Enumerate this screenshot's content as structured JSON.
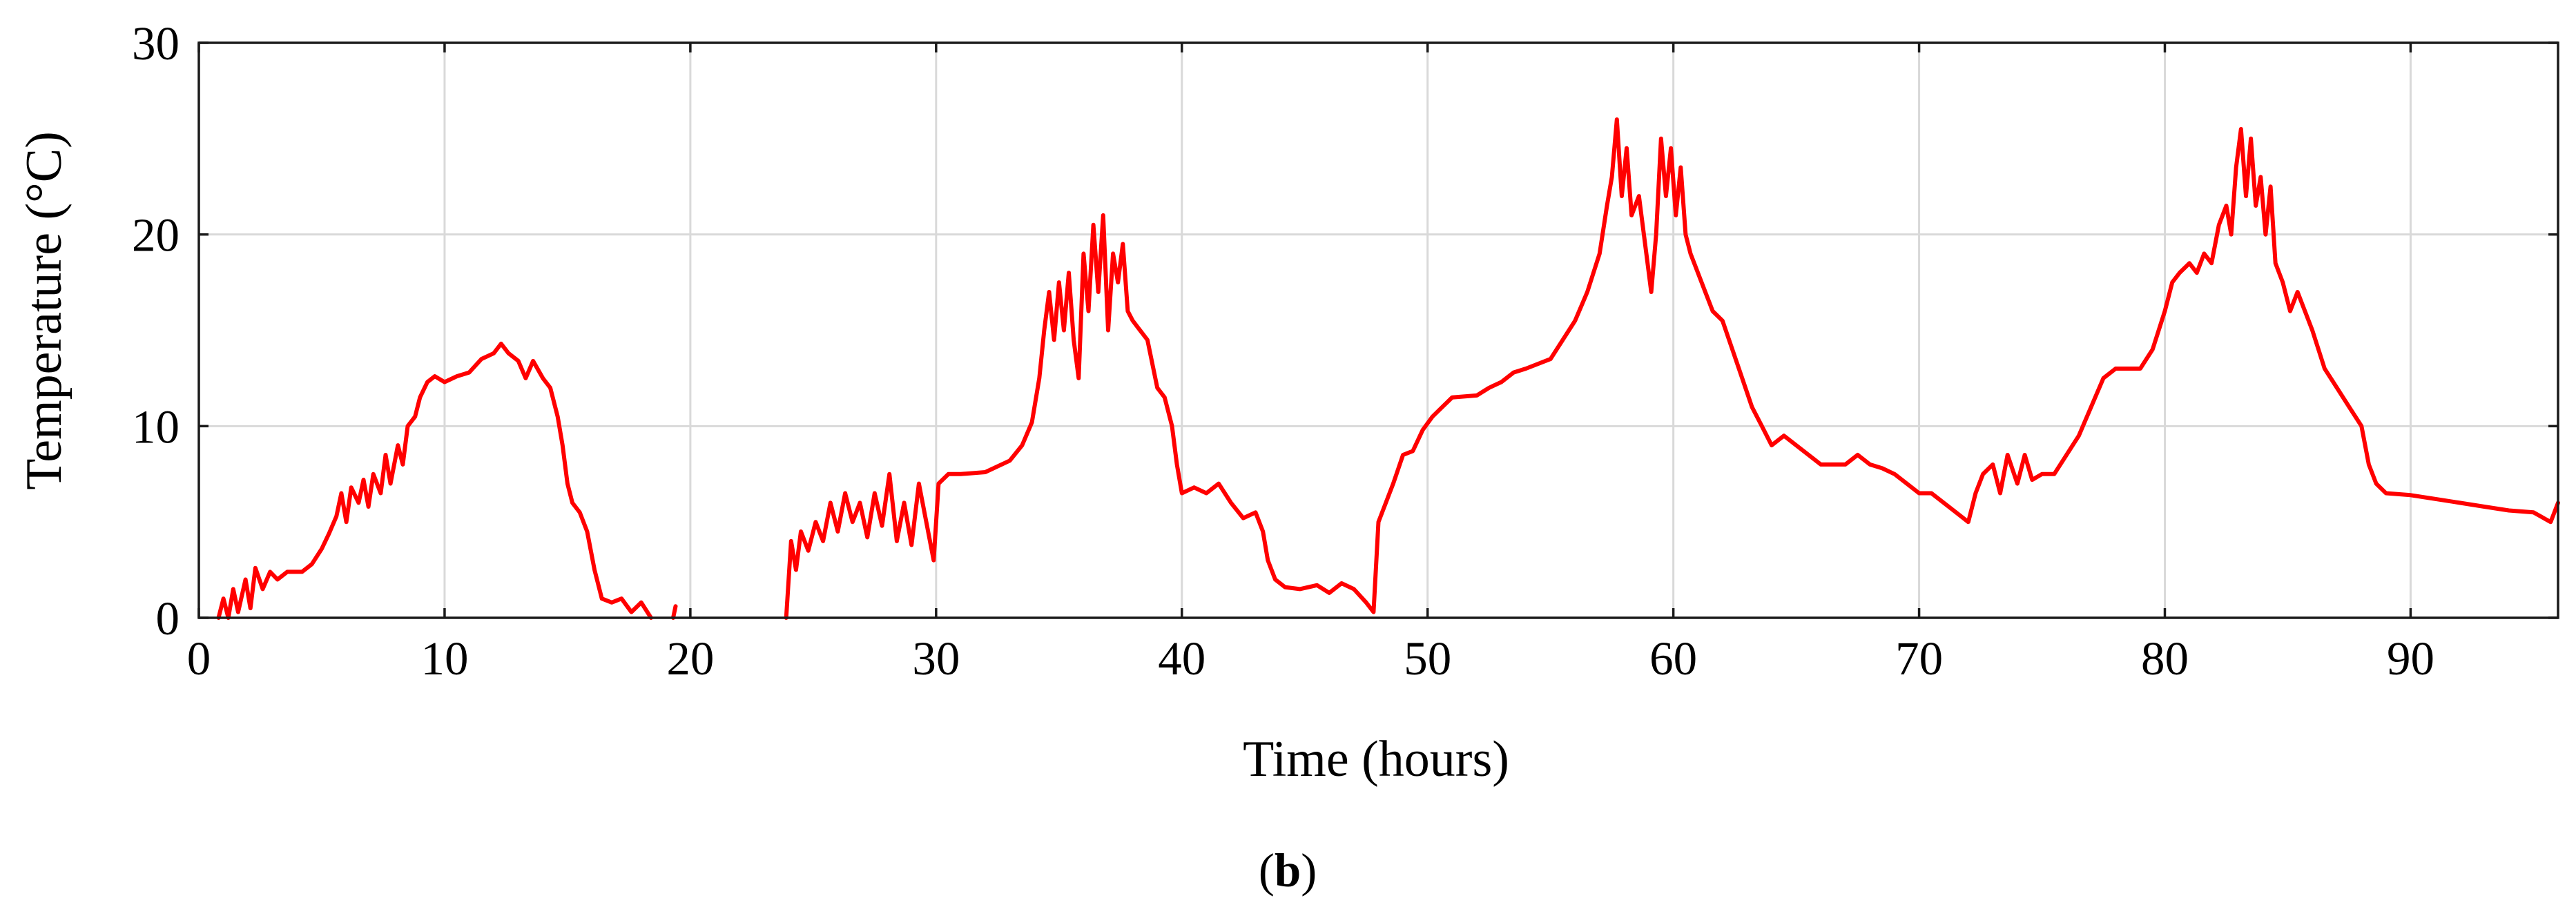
{
  "chart_data": {
    "type": "line",
    "xlabel": "Time (hours)",
    "ylabel": "Temperature (°C)",
    "panel_label": {
      "open": "(",
      "letter": "b",
      "close": ")"
    },
    "xlim": [
      0,
      96
    ],
    "ylim": [
      0,
      30
    ],
    "xticks": [
      0,
      10,
      20,
      30,
      40,
      50,
      60,
      70,
      80,
      90
    ],
    "yticks": [
      0,
      10,
      20,
      30
    ],
    "grid": true,
    "line_color": "#ff0000",
    "series": [
      {
        "segments": [
          [
            [
              0.8,
              0
            ],
            [
              1.0,
              1.0
            ],
            [
              1.2,
              0
            ],
            [
              1.4,
              1.5
            ],
            [
              1.6,
              0.3
            ],
            [
              1.9,
              2.0
            ],
            [
              2.1,
              0.5
            ],
            [
              2.3,
              2.6
            ],
            [
              2.6,
              1.5
            ],
            [
              2.9,
              2.4
            ],
            [
              3.2,
              2.0
            ],
            [
              3.6,
              2.4
            ],
            [
              4.2,
              2.4
            ],
            [
              4.6,
              2.8
            ],
            [
              5.0,
              3.6
            ],
            [
              5.3,
              4.4
            ],
            [
              5.6,
              5.3
            ],
            [
              5.8,
              6.5
            ],
            [
              6.0,
              5.0
            ],
            [
              6.2,
              6.8
            ],
            [
              6.5,
              6.0
            ],
            [
              6.7,
              7.2
            ],
            [
              6.9,
              5.8
            ],
            [
              7.1,
              7.5
            ],
            [
              7.4,
              6.5
            ],
            [
              7.6,
              8.5
            ],
            [
              7.8,
              7.0
            ],
            [
              8.1,
              9.0
            ],
            [
              8.3,
              8.0
            ],
            [
              8.5,
              10.0
            ],
            [
              8.8,
              10.5
            ],
            [
              9.0,
              11.5
            ],
            [
              9.3,
              12.3
            ],
            [
              9.6,
              12.6
            ],
            [
              10.0,
              12.3
            ],
            [
              10.5,
              12.6
            ],
            [
              11.0,
              12.8
            ],
            [
              11.5,
              13.5
            ],
            [
              12.0,
              13.8
            ],
            [
              12.3,
              14.3
            ],
            [
              12.6,
              13.8
            ],
            [
              13.0,
              13.4
            ],
            [
              13.3,
              12.5
            ],
            [
              13.6,
              13.4
            ],
            [
              14.0,
              12.5
            ],
            [
              14.3,
              12.0
            ],
            [
              14.6,
              10.5
            ],
            [
              14.8,
              9.0
            ],
            [
              15.0,
              7.0
            ],
            [
              15.2,
              6.0
            ],
            [
              15.5,
              5.5
            ],
            [
              15.8,
              4.5
            ],
            [
              16.1,
              2.5
            ],
            [
              16.4,
              1.0
            ],
            [
              16.8,
              0.8
            ],
            [
              17.2,
              1.0
            ],
            [
              17.6,
              0.3
            ],
            [
              18.0,
              0.8
            ],
            [
              18.4,
              0
            ]
          ],
          [
            [
              19.3,
              0
            ],
            [
              19.4,
              0.6
            ]
          ],
          [
            [
              23.9,
              0
            ],
            [
              24.1,
              4.0
            ],
            [
              24.3,
              2.5
            ],
            [
              24.5,
              4.5
            ],
            [
              24.8,
              3.5
            ],
            [
              25.1,
              5.0
            ],
            [
              25.4,
              4.0
            ],
            [
              25.7,
              6.0
            ],
            [
              26.0,
              4.5
            ],
            [
              26.3,
              6.5
            ],
            [
              26.6,
              5.0
            ],
            [
              26.9,
              6.0
            ],
            [
              27.2,
              4.2
            ],
            [
              27.5,
              6.5
            ],
            [
              27.8,
              4.8
            ],
            [
              28.1,
              7.5
            ],
            [
              28.4,
              4.0
            ],
            [
              28.7,
              6.0
            ],
            [
              29.0,
              3.8
            ],
            [
              29.3,
              7.0
            ],
            [
              29.6,
              5.0
            ],
            [
              29.9,
              3.0
            ],
            [
              30.1,
              7.0
            ],
            [
              30.5,
              7.5
            ],
            [
              31.0,
              7.5
            ],
            [
              32.0,
              7.6
            ],
            [
              33.0,
              8.2
            ],
            [
              33.5,
              9.0
            ],
            [
              33.9,
              10.2
            ],
            [
              34.2,
              12.5
            ],
            [
              34.4,
              15.0
            ],
            [
              34.6,
              17.0
            ],
            [
              34.8,
              14.5
            ],
            [
              35.0,
              17.5
            ],
            [
              35.2,
              15.0
            ],
            [
              35.4,
              18.0
            ],
            [
              35.6,
              14.5
            ],
            [
              35.8,
              12.5
            ],
            [
              36.0,
              19.0
            ],
            [
              36.2,
              16.0
            ],
            [
              36.4,
              20.5
            ],
            [
              36.6,
              17.0
            ],
            [
              36.8,
              21.0
            ],
            [
              37.0,
              15.0
            ],
            [
              37.2,
              19.0
            ],
            [
              37.4,
              17.5
            ],
            [
              37.6,
              19.5
            ],
            [
              37.8,
              16.0
            ],
            [
              38.0,
              15.5
            ],
            [
              38.3,
              15.0
            ],
            [
              38.6,
              14.5
            ],
            [
              39.0,
              12.0
            ],
            [
              39.3,
              11.5
            ],
            [
              39.6,
              10.0
            ],
            [
              39.8,
              8.0
            ],
            [
              40.0,
              6.5
            ],
            [
              40.5,
              6.8
            ],
            [
              41.0,
              6.5
            ],
            [
              41.5,
              7.0
            ],
            [
              42.0,
              6.0
            ],
            [
              42.5,
              5.2
            ],
            [
              43.0,
              5.5
            ],
            [
              43.3,
              4.5
            ],
            [
              43.5,
              3.0
            ],
            [
              43.8,
              2.0
            ],
            [
              44.2,
              1.6
            ],
            [
              44.8,
              1.5
            ],
            [
              45.5,
              1.7
            ],
            [
              46.0,
              1.3
            ],
            [
              46.5,
              1.8
            ],
            [
              47.0,
              1.5
            ],
            [
              47.5,
              0.8
            ],
            [
              47.8,
              0.3
            ],
            [
              48.0,
              5.0
            ],
            [
              48.3,
              6.0
            ],
            [
              48.6,
              7.0
            ],
            [
              49.0,
              8.5
            ],
            [
              49.4,
              8.7
            ],
            [
              49.8,
              9.8
            ],
            [
              50.2,
              10.5
            ],
            [
              50.6,
              11.0
            ],
            [
              51.0,
              11.5
            ],
            [
              52.0,
              11.6
            ],
            [
              52.5,
              12.0
            ],
            [
              53.0,
              12.3
            ],
            [
              53.5,
              12.8
            ],
            [
              54.0,
              13.0
            ],
            [
              55.0,
              13.5
            ],
            [
              56.0,
              15.5
            ],
            [
              56.5,
              17.0
            ],
            [
              57.0,
              19.0
            ],
            [
              57.3,
              21.5
            ],
            [
              57.5,
              23.0
            ],
            [
              57.7,
              26.0
            ],
            [
              57.9,
              22.0
            ],
            [
              58.1,
              24.5
            ],
            [
              58.3,
              21.0
            ],
            [
              58.6,
              22.0
            ],
            [
              58.9,
              19.0
            ],
            [
              59.1,
              17.0
            ],
            [
              59.3,
              20.0
            ],
            [
              59.5,
              25.0
            ],
            [
              59.7,
              22.0
            ],
            [
              59.9,
              24.5
            ],
            [
              60.1,
              21.0
            ],
            [
              60.3,
              23.5
            ],
            [
              60.5,
              20.0
            ],
            [
              60.7,
              19.0
            ],
            [
              61.0,
              18.0
            ],
            [
              61.3,
              17.0
            ],
            [
              61.6,
              16.0
            ],
            [
              62.0,
              15.5
            ],
            [
              62.4,
              14.0
            ],
            [
              62.8,
              12.5
            ],
            [
              63.2,
              11.0
            ],
            [
              63.6,
              10.0
            ],
            [
              64.0,
              9.0
            ],
            [
              64.5,
              9.5
            ],
            [
              65.0,
              9.0
            ],
            [
              65.5,
              8.5
            ],
            [
              66.0,
              8.0
            ],
            [
              67.0,
              8.0
            ],
            [
              67.5,
              8.5
            ],
            [
              68.0,
              8.0
            ],
            [
              68.5,
              7.8
            ],
            [
              69.0,
              7.5
            ],
            [
              69.5,
              7.0
            ],
            [
              70.0,
              6.5
            ],
            [
              70.5,
              6.5
            ],
            [
              71.0,
              6.0
            ],
            [
              71.5,
              5.5
            ],
            [
              72.0,
              5.0
            ],
            [
              72.3,
              6.5
            ],
            [
              72.6,
              7.5
            ],
            [
              73.0,
              8.0
            ],
            [
              73.3,
              6.5
            ],
            [
              73.6,
              8.5
            ],
            [
              74.0,
              7.0
            ],
            [
              74.3,
              8.5
            ],
            [
              74.6,
              7.2
            ],
            [
              75.0,
              7.5
            ],
            [
              75.5,
              7.5
            ],
            [
              76.0,
              8.5
            ],
            [
              76.5,
              9.5
            ],
            [
              77.0,
              11.0
            ],
            [
              77.5,
              12.5
            ],
            [
              78.0,
              13.0
            ],
            [
              78.5,
              13.0
            ],
            [
              79.0,
              13.0
            ],
            [
              79.5,
              14.0
            ],
            [
              80.0,
              16.0
            ],
            [
              80.3,
              17.5
            ],
            [
              80.6,
              18.0
            ],
            [
              81.0,
              18.5
            ],
            [
              81.3,
              18.0
            ],
            [
              81.6,
              19.0
            ],
            [
              81.9,
              18.5
            ],
            [
              82.2,
              20.5
            ],
            [
              82.5,
              21.5
            ],
            [
              82.7,
              20.0
            ],
            [
              82.9,
              23.5
            ],
            [
              83.1,
              25.5
            ],
            [
              83.3,
              22.0
            ],
            [
              83.5,
              25.0
            ],
            [
              83.7,
              21.5
            ],
            [
              83.9,
              23.0
            ],
            [
              84.1,
              20.0
            ],
            [
              84.3,
              22.5
            ],
            [
              84.5,
              18.5
            ],
            [
              84.8,
              17.5
            ],
            [
              85.1,
              16.0
            ],
            [
              85.4,
              17.0
            ],
            [
              85.7,
              16.0
            ],
            [
              86.0,
              15.0
            ],
            [
              86.5,
              13.0
            ],
            [
              87.0,
              12.0
            ],
            [
              87.5,
              11.0
            ],
            [
              88.0,
              10.0
            ],
            [
              88.3,
              8.0
            ],
            [
              88.6,
              7.0
            ],
            [
              89.0,
              6.5
            ],
            [
              90.0,
              6.4
            ],
            [
              91.0,
              6.2
            ],
            [
              92.0,
              6.0
            ],
            [
              93.0,
              5.8
            ],
            [
              94.0,
              5.6
            ],
            [
              95.0,
              5.5
            ],
            [
              95.7,
              5.0
            ],
            [
              96.0,
              6.0
            ]
          ]
        ]
      }
    ]
  }
}
